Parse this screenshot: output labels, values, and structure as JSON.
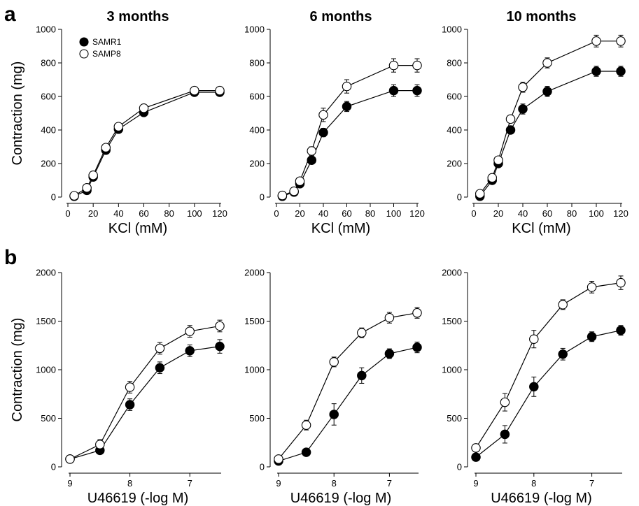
{
  "figure": {
    "panel_letters": [
      "a",
      "b"
    ],
    "legend": [
      {
        "name": "SAMR1",
        "marker": "filled-circle"
      },
      {
        "name": "SAMP8",
        "marker": "open-circle"
      }
    ]
  },
  "chart_data": [
    {
      "type": "line",
      "row": 0,
      "col": 0,
      "title": "3 months",
      "xlabel": "KCl (mM)",
      "ylabel": "Contraction (mg)",
      "xlim": [
        0,
        120
      ],
      "ylim": [
        0,
        1000
      ],
      "xticks": [
        0,
        20,
        40,
        60,
        80,
        100,
        120
      ],
      "yticks": [
        0,
        200,
        400,
        600,
        800,
        1000
      ],
      "show_legend": true,
      "series": [
        {
          "name": "SAMR1",
          "fill": "#000000",
          "x": [
            5,
            15,
            20,
            30,
            40,
            60,
            100,
            120
          ],
          "y": [
            5,
            40,
            120,
            280,
            405,
            505,
            625,
            625
          ],
          "err": [
            8,
            10,
            12,
            15,
            15,
            15,
            15,
            15
          ]
        },
        {
          "name": "SAMP8",
          "fill": "#ffffff",
          "x": [
            5,
            15,
            20,
            30,
            40,
            60,
            100,
            120
          ],
          "y": [
            8,
            55,
            130,
            295,
            420,
            530,
            635,
            635
          ],
          "err": [
            8,
            10,
            12,
            15,
            15,
            15,
            15,
            15
          ]
        }
      ]
    },
    {
      "type": "line",
      "row": 0,
      "col": 1,
      "title": "6 months",
      "xlabel": "KCl (mM)",
      "ylabel": "",
      "xlim": [
        0,
        120
      ],
      "ylim": [
        0,
        1000
      ],
      "xticks": [
        0,
        20,
        40,
        60,
        80,
        100,
        120
      ],
      "yticks": [
        0,
        200,
        400,
        600,
        800,
        1000
      ],
      "show_legend": false,
      "series": [
        {
          "name": "SAMR1",
          "fill": "#000000",
          "x": [
            5,
            15,
            20,
            30,
            40,
            60,
            100,
            120
          ],
          "y": [
            5,
            30,
            80,
            220,
            385,
            540,
            635,
            635
          ],
          "err": [
            8,
            10,
            15,
            20,
            25,
            30,
            35,
            35
          ]
        },
        {
          "name": "SAMP8",
          "fill": "#ffffff",
          "x": [
            5,
            15,
            20,
            30,
            40,
            60,
            100,
            120
          ],
          "y": [
            10,
            35,
            95,
            275,
            490,
            660,
            785,
            785
          ],
          "err": [
            8,
            10,
            15,
            25,
            40,
            40,
            40,
            40
          ]
        }
      ]
    },
    {
      "type": "line",
      "row": 0,
      "col": 2,
      "title": "10 months",
      "xlabel": "KCl (mM)",
      "ylabel": "",
      "xlim": [
        0,
        120
      ],
      "ylim": [
        0,
        1000
      ],
      "xticks": [
        0,
        20,
        40,
        60,
        80,
        100,
        120
      ],
      "yticks": [
        0,
        200,
        400,
        600,
        800,
        1000
      ],
      "show_legend": false,
      "series": [
        {
          "name": "SAMR1",
          "fill": "#000000",
          "x": [
            5,
            15,
            20,
            30,
            40,
            60,
            100,
            120
          ],
          "y": [
            5,
            100,
            200,
            400,
            525,
            630,
            750,
            750
          ],
          "err": [
            8,
            12,
            15,
            20,
            30,
            30,
            30,
            30
          ]
        },
        {
          "name": "SAMP8",
          "fill": "#ffffff",
          "x": [
            5,
            15,
            20,
            30,
            40,
            60,
            100,
            120
          ],
          "y": [
            20,
            115,
            220,
            465,
            655,
            800,
            930,
            930
          ],
          "err": [
            8,
            12,
            15,
            20,
            30,
            30,
            35,
            35
          ]
        }
      ]
    },
    {
      "type": "line",
      "row": 1,
      "col": 0,
      "title": "",
      "xlabel": "U46619 (-log M)",
      "ylabel": "Contraction (mg)",
      "xlim": [
        9,
        6.5
      ],
      "ylim": [
        0,
        2000
      ],
      "xticks": [
        9,
        8,
        7
      ],
      "yticks": [
        0,
        500,
        1000,
        1500,
        2000
      ],
      "show_legend": false,
      "series": [
        {
          "name": "SAMR1",
          "fill": "#000000",
          "x": [
            9,
            8.5,
            8,
            7.5,
            7,
            6.5
          ],
          "y": [
            80,
            170,
            640,
            1020,
            1195,
            1240
          ],
          "err": [
            15,
            25,
            60,
            60,
            60,
            70
          ]
        },
        {
          "name": "SAMP8",
          "fill": "#ffffff",
          "x": [
            9,
            8.5,
            8,
            7.5,
            7,
            6.5
          ],
          "y": [
            80,
            230,
            820,
            1220,
            1395,
            1450
          ],
          "err": [
            15,
            50,
            60,
            60,
            60,
            60
          ]
        }
      ]
    },
    {
      "type": "line",
      "row": 1,
      "col": 1,
      "title": "",
      "xlabel": "U46619 (-log M)",
      "ylabel": "",
      "xlim": [
        9,
        6.5
      ],
      "ylim": [
        0,
        2000
      ],
      "xticks": [
        9,
        8,
        7
      ],
      "yticks": [
        0,
        500,
        1000,
        1500,
        2000
      ],
      "show_legend": false,
      "series": [
        {
          "name": "SAMR1",
          "fill": "#000000",
          "x": [
            9,
            8.5,
            8,
            7.5,
            7,
            6.5
          ],
          "y": [
            60,
            150,
            540,
            940,
            1165,
            1230
          ],
          "err": [
            10,
            20,
            110,
            80,
            50,
            55
          ]
        },
        {
          "name": "SAMP8",
          "fill": "#ffffff",
          "x": [
            9,
            8.5,
            8,
            7.5,
            7,
            6.5
          ],
          "y": [
            80,
            430,
            1080,
            1380,
            1535,
            1585
          ],
          "err": [
            15,
            50,
            50,
            50,
            55,
            55
          ]
        }
      ]
    },
    {
      "type": "line",
      "row": 1,
      "col": 2,
      "title": "",
      "xlabel": "U46619 (-log M)",
      "ylabel": "",
      "xlim": [
        9,
        6.5
      ],
      "ylim": [
        0,
        2000
      ],
      "xticks": [
        9,
        8,
        7
      ],
      "yticks": [
        0,
        500,
        1000,
        1500,
        2000
      ],
      "show_legend": false,
      "series": [
        {
          "name": "SAMR1",
          "fill": "#000000",
          "x": [
            9,
            8.5,
            8,
            7.5,
            7,
            6.5
          ],
          "y": [
            100,
            335,
            825,
            1160,
            1340,
            1405
          ],
          "err": [
            15,
            90,
            100,
            60,
            50,
            50
          ]
        },
        {
          "name": "SAMP8",
          "fill": "#ffffff",
          "x": [
            9,
            8.5,
            8,
            7.5,
            7,
            6.5
          ],
          "y": [
            195,
            665,
            1315,
            1670,
            1850,
            1895
          ],
          "err": [
            40,
            90,
            90,
            50,
            60,
            70
          ]
        }
      ]
    }
  ]
}
